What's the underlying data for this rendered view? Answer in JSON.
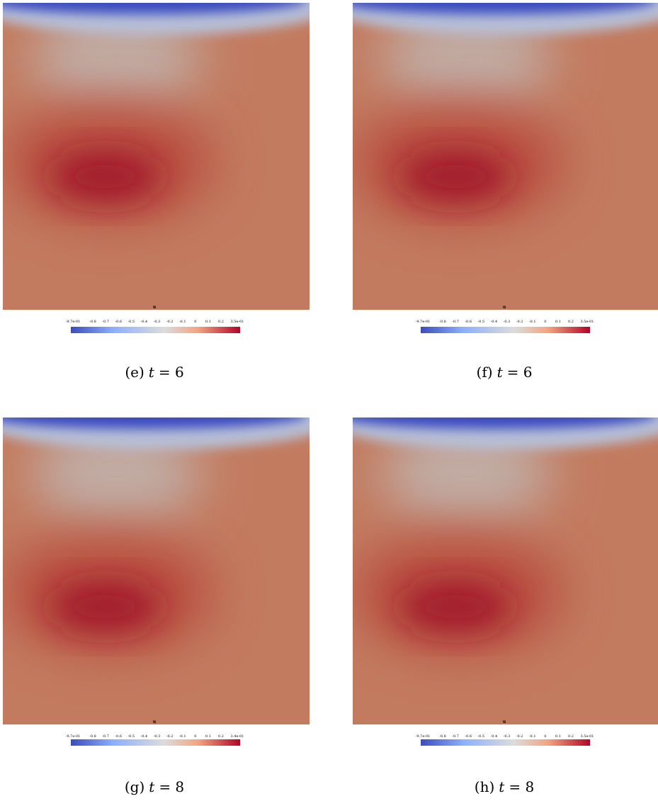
{
  "panels": [
    {
      "colorbar": {
        "title": "u",
        "ticks": [
          "-9.7e-01",
          "-0.8",
          "-0.7",
          "-0.6",
          "-0.5",
          "-0.4",
          "-0.3",
          "-0.2",
          "-0.1",
          "0",
          "0.1",
          "0.2",
          "3.5e-01"
        ]
      },
      "caption": {
        "label": "(e)",
        "variable": "t",
        "value": "= 6"
      }
    },
    {
      "colorbar": {
        "title": "u",
        "ticks": [
          "-9.7e-01",
          "-0.8",
          "-0.7",
          "-0.6",
          "-0.5",
          "-0.4",
          "-0.3",
          "-0.2",
          "-0.1",
          "0",
          "0.1",
          "0.2",
          "3.5e-01"
        ]
      },
      "caption": {
        "label": "(f)",
        "variable": "t",
        "value": "= 6"
      }
    },
    {
      "colorbar": {
        "title": "u",
        "ticks": [
          "-9.7e-01",
          "-0.8",
          "-0.7",
          "-0.6",
          "-0.5",
          "-0.4",
          "-0.3",
          "-0.2",
          "-0.1",
          "0",
          "0.1",
          "0.2",
          "3.4e-01"
        ]
      },
      "caption": {
        "label": "(g)",
        "variable": "t",
        "value": "= 8"
      }
    },
    {
      "colorbar": {
        "title": "u",
        "ticks": [
          "-9.7e-01",
          "-0.8",
          "-0.7",
          "-0.6",
          "-0.5",
          "-0.4",
          "-0.3",
          "-0.2",
          "-0.1",
          "0",
          "0.1",
          "0.2",
          "3.5e-01"
        ]
      },
      "caption": {
        "label": "(h)",
        "variable": "t",
        "value": "= 8"
      }
    }
  ]
}
